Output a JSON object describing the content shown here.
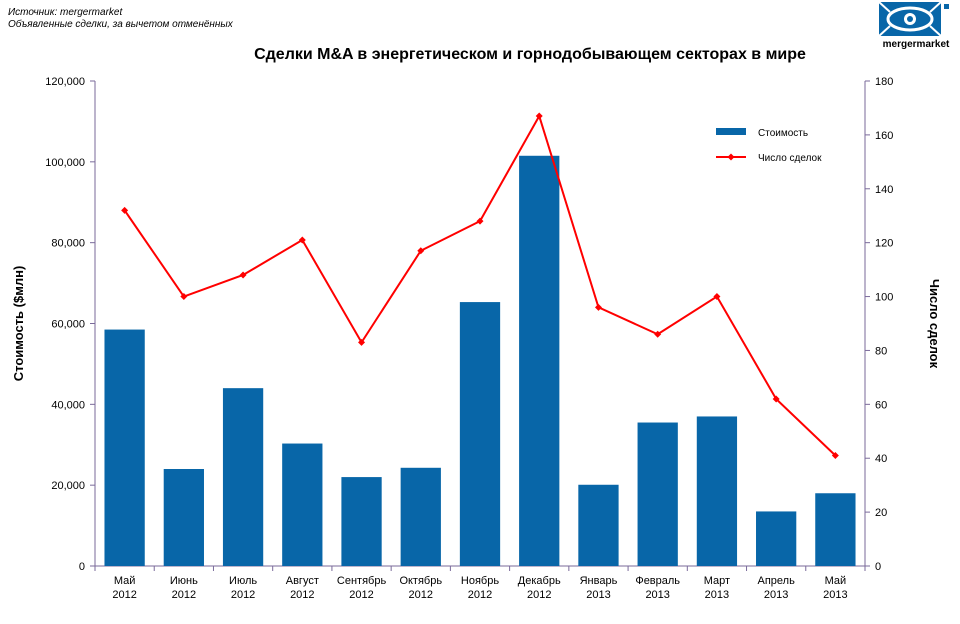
{
  "header": {
    "source_line1": "Источник: mergermarket",
    "source_line2": "Объявленные сделки, за вычетом отменённых",
    "logo_text": "mergermarket"
  },
  "colors": {
    "bar": "#0866A8",
    "line": "#FF0000",
    "axis": "#7A6A9A",
    "text": "#000000"
  },
  "chart_data": {
    "type": "bar",
    "title": "Сделки M&A в энергетическом и горнодобывающем секторах в мире",
    "categories": [
      [
        "Май",
        "2012"
      ],
      [
        "Июнь",
        "2012"
      ],
      [
        "Июль",
        "2012"
      ],
      [
        "Август",
        "2012"
      ],
      [
        "Сентябрь",
        "2012"
      ],
      [
        "Октябрь",
        "2012"
      ],
      [
        "Ноябрь",
        "2012"
      ],
      [
        "Декабрь",
        "2012"
      ],
      [
        "Январь",
        "2013"
      ],
      [
        "Февраль",
        "2013"
      ],
      [
        "Март",
        "2013"
      ],
      [
        "Апрель",
        "2013"
      ],
      [
        "Май",
        "2013"
      ]
    ],
    "ylabel": "Стоимость ($млн)",
    "y2label": "Число сделок",
    "ylim": [
      0,
      120000
    ],
    "y2lim": [
      0,
      180
    ],
    "yticks": [
      "0",
      "20,000",
      "40,000",
      "60,000",
      "80,000",
      "100,000",
      "120,000"
    ],
    "y2ticks": [
      "0",
      "20",
      "40",
      "60",
      "80",
      "100",
      "120",
      "140",
      "160",
      "180"
    ],
    "series": [
      {
        "name": "Стоимость",
        "type": "bar",
        "axis": "left",
        "values": [
          58500,
          24000,
          44000,
          30300,
          22000,
          24300,
          65300,
          101500,
          20100,
          35500,
          37000,
          13500,
          18000
        ]
      },
      {
        "name": "Число сделок",
        "type": "line",
        "axis": "right",
        "values": [
          132,
          100,
          108,
          121,
          83,
          117,
          128,
          167,
          96,
          86,
          100,
          62,
          41
        ]
      }
    ],
    "legend_position": "top-right",
    "grid": false
  }
}
